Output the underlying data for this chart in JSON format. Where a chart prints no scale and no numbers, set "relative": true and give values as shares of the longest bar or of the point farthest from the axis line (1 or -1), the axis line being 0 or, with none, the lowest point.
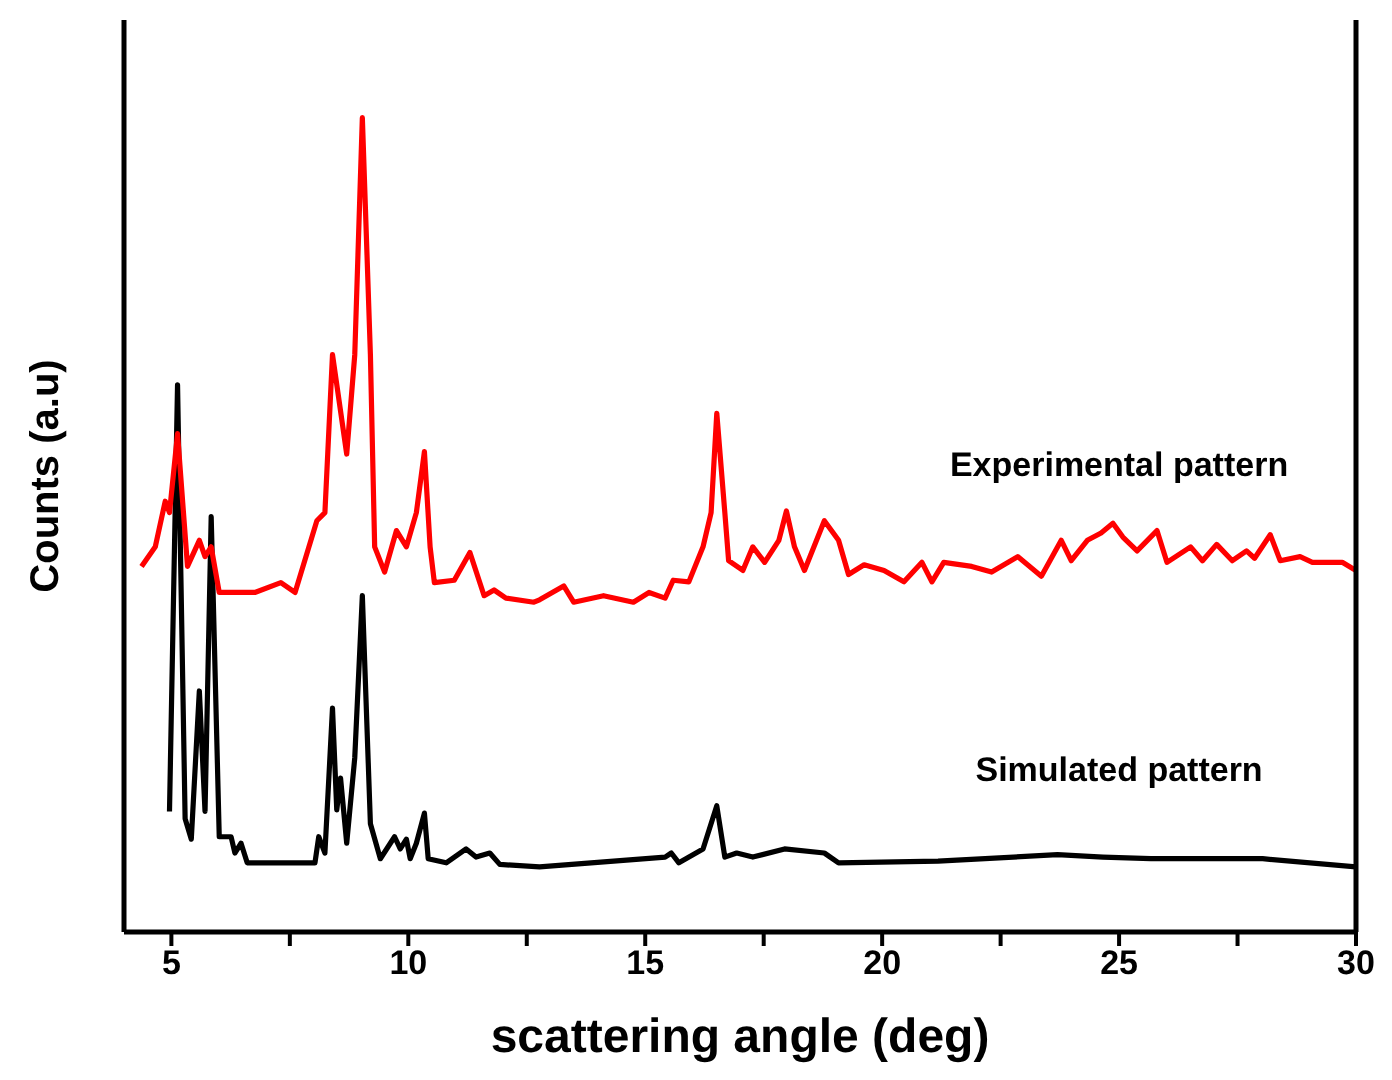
{
  "chart_data": {
    "type": "line",
    "xlabel": "scattering angle (deg)",
    "ylabel": "Counts (a.u)",
    "relative": true,
    "xlim": [
      4,
      30
    ],
    "xticks": [
      5,
      {
        "value": 7.5,
        "label": null
      },
      10,
      {
        "value": 12.5,
        "label": null
      },
      15,
      {
        "value": 17.5,
        "label": null
      },
      20,
      {
        "value": 22.5,
        "label": null
      },
      25,
      {
        "value": 27.5,
        "label": null
      },
      30
    ],
    "marker": "none",
    "line_style": "solid",
    "series": [
      {
        "name": "Experimental pattern",
        "color": "#ff0000",
        "x": [
          4.37,
          4.66,
          4.87,
          4.96,
          5.13,
          5.34,
          5.59,
          5.71,
          5.84,
          6.01,
          6.76,
          7.31,
          7.61,
          8.07,
          8.24,
          8.4,
          8.7,
          8.87,
          9.03,
          9.2,
          9.29,
          9.5,
          9.75,
          9.96,
          10.17,
          10.34,
          10.46,
          10.55,
          10.97,
          11.3,
          11.6,
          11.81,
          12.06,
          12.65,
          12.77,
          13.28,
          13.49,
          14.12,
          14.75,
          15.08,
          15.42,
          15.59,
          15.92,
          16.22,
          16.39,
          16.51,
          16.68,
          16.76,
          17.06,
          17.27,
          17.52,
          17.82,
          17.98,
          18.15,
          18.36,
          18.78,
          19.08,
          19.29,
          19.62,
          20.04,
          20.46,
          20.84,
          21.05,
          21.3,
          21.89,
          22.31,
          22.86,
          23.36,
          23.78,
          23.99,
          24.33,
          24.62,
          24.87,
          25.08,
          25.38,
          25.8,
          26.01,
          26.51,
          26.76,
          27.06,
          27.39,
          27.69,
          27.86,
          28.19,
          28.4,
          28.82,
          29.08,
          29.71,
          30
        ],
        "values": [
          0.449,
          0.473,
          0.529,
          0.515,
          0.612,
          0.449,
          0.481,
          0.461,
          0.473,
          0.417,
          0.417,
          0.429,
          0.417,
          0.505,
          0.515,
          0.709,
          0.587,
          0.709,
          1,
          0.709,
          0.473,
          0.442,
          0.493,
          0.473,
          0.515,
          0.59,
          0.473,
          0.429,
          0.432,
          0.466,
          0.413,
          0.42,
          0.41,
          0.405,
          0.408,
          0.425,
          0.405,
          0.413,
          0.405,
          0.417,
          0.41,
          0.432,
          0.43,
          0.473,
          0.515,
          0.637,
          0.515,
          0.456,
          0.444,
          0.473,
          0.454,
          0.481,
          0.517,
          0.473,
          0.444,
          0.505,
          0.481,
          0.439,
          0.451,
          0.444,
          0.43,
          0.454,
          0.43,
          0.454,
          0.449,
          0.442,
          0.461,
          0.437,
          0.481,
          0.456,
          0.481,
          0.49,
          0.502,
          0.485,
          0.468,
          0.493,
          0.454,
          0.473,
          0.456,
          0.476,
          0.456,
          0.468,
          0.459,
          0.488,
          0.456,
          0.461,
          0.454,
          0.454,
          0.444
        ]
      },
      {
        "name": "Simulated pattern",
        "color": "#000000",
        "x": [
          4.96,
          5.13,
          5.29,
          5.42,
          5.59,
          5.71,
          5.84,
          6.01,
          6.26,
          6.34,
          6.47,
          6.6,
          8.03,
          8.11,
          8.24,
          8.4,
          8.49,
          8.57,
          8.7,
          8.87,
          9.03,
          9.2,
          9.41,
          9.71,
          9.83,
          9.96,
          10.04,
          10.17,
          10.34,
          10.42,
          10.8,
          11.22,
          11.43,
          11.72,
          11.93,
          12.77,
          15.42,
          15.55,
          15.71,
          16.22,
          16.51,
          16.68,
          16.93,
          17.27,
          17.94,
          18.78,
          19.08,
          21.18,
          23.7,
          24.66,
          25.67,
          28.03,
          30
        ],
        "values": [
          0.148,
          0.672,
          0.139,
          0.114,
          0.296,
          0.148,
          0.51,
          0.117,
          0.117,
          0.097,
          0.109,
          0.085,
          0.085,
          0.117,
          0.097,
          0.275,
          0.15,
          0.189,
          0.109,
          0.214,
          0.413,
          0.133,
          0.09,
          0.117,
          0.102,
          0.114,
          0.09,
          0.109,
          0.146,
          0.09,
          0.085,
          0.102,
          0.092,
          0.097,
          0.083,
          0.08,
          0.092,
          0.097,
          0.085,
          0.102,
          0.155,
          0.092,
          0.097,
          0.092,
          0.102,
          0.097,
          0.085,
          0.087,
          0.095,
          0.092,
          0.09,
          0.09,
          0.08
        ]
      }
    ]
  }
}
